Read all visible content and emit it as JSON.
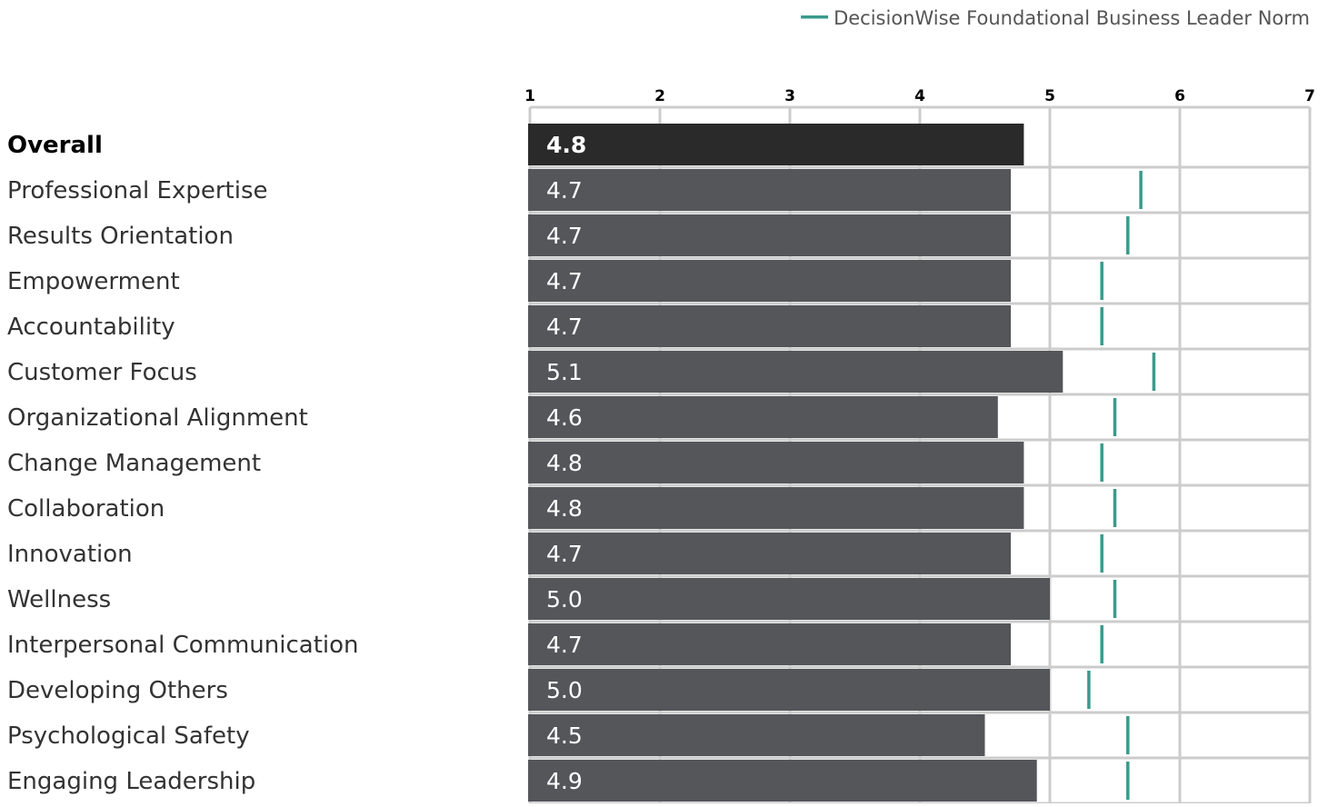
{
  "chart_data": {
    "type": "bar",
    "orientation": "horizontal",
    "xlim": [
      1,
      7
    ],
    "x_ticks": [
      "1",
      "2",
      "3",
      "4",
      "5",
      "6",
      "7"
    ],
    "x_tick_values": [
      1,
      2,
      3,
      4,
      5,
      6,
      7
    ],
    "categories": [
      "Overall",
      "Professional Expertise",
      "Results Orientation",
      "Empowerment",
      "Accountability",
      "Customer Focus",
      "Organizational Alignment",
      "Change Management",
      "Collaboration",
      "Innovation",
      "Wellness",
      "Interpersonal Communication",
      "Developing Others",
      "Psychological Safety",
      "Engaging Leadership"
    ],
    "values": [
      4.8,
      4.7,
      4.7,
      4.7,
      4.7,
      5.1,
      4.6,
      4.8,
      4.8,
      4.7,
      5.0,
      4.7,
      5.0,
      4.5,
      4.9
    ],
    "value_labels": [
      "4.8",
      "4.7",
      "4.7",
      "4.7",
      "4.7",
      "5.1",
      "4.6",
      "4.8",
      "4.8",
      "4.7",
      "5.0",
      "4.7",
      "5.0",
      "4.5",
      "4.9"
    ],
    "norm": {
      "name": "DecisionWise Foundational Business Leader Norm",
      "values": [
        null,
        5.7,
        5.6,
        5.4,
        5.4,
        5.8,
        5.5,
        5.4,
        5.5,
        5.4,
        5.5,
        5.4,
        5.3,
        5.6,
        5.6
      ]
    },
    "highlight_index": 0,
    "legend_position": "top-right",
    "grid": true
  },
  "colors": {
    "bar": "#54565a",
    "bar_highlight": "#2a2a2a",
    "norm": "#3a9a8b",
    "grid": "#cccccc",
    "label_text": "#333333",
    "legend_text": "#555555",
    "tick_text": "#000000",
    "value_text": "#ffffff"
  }
}
